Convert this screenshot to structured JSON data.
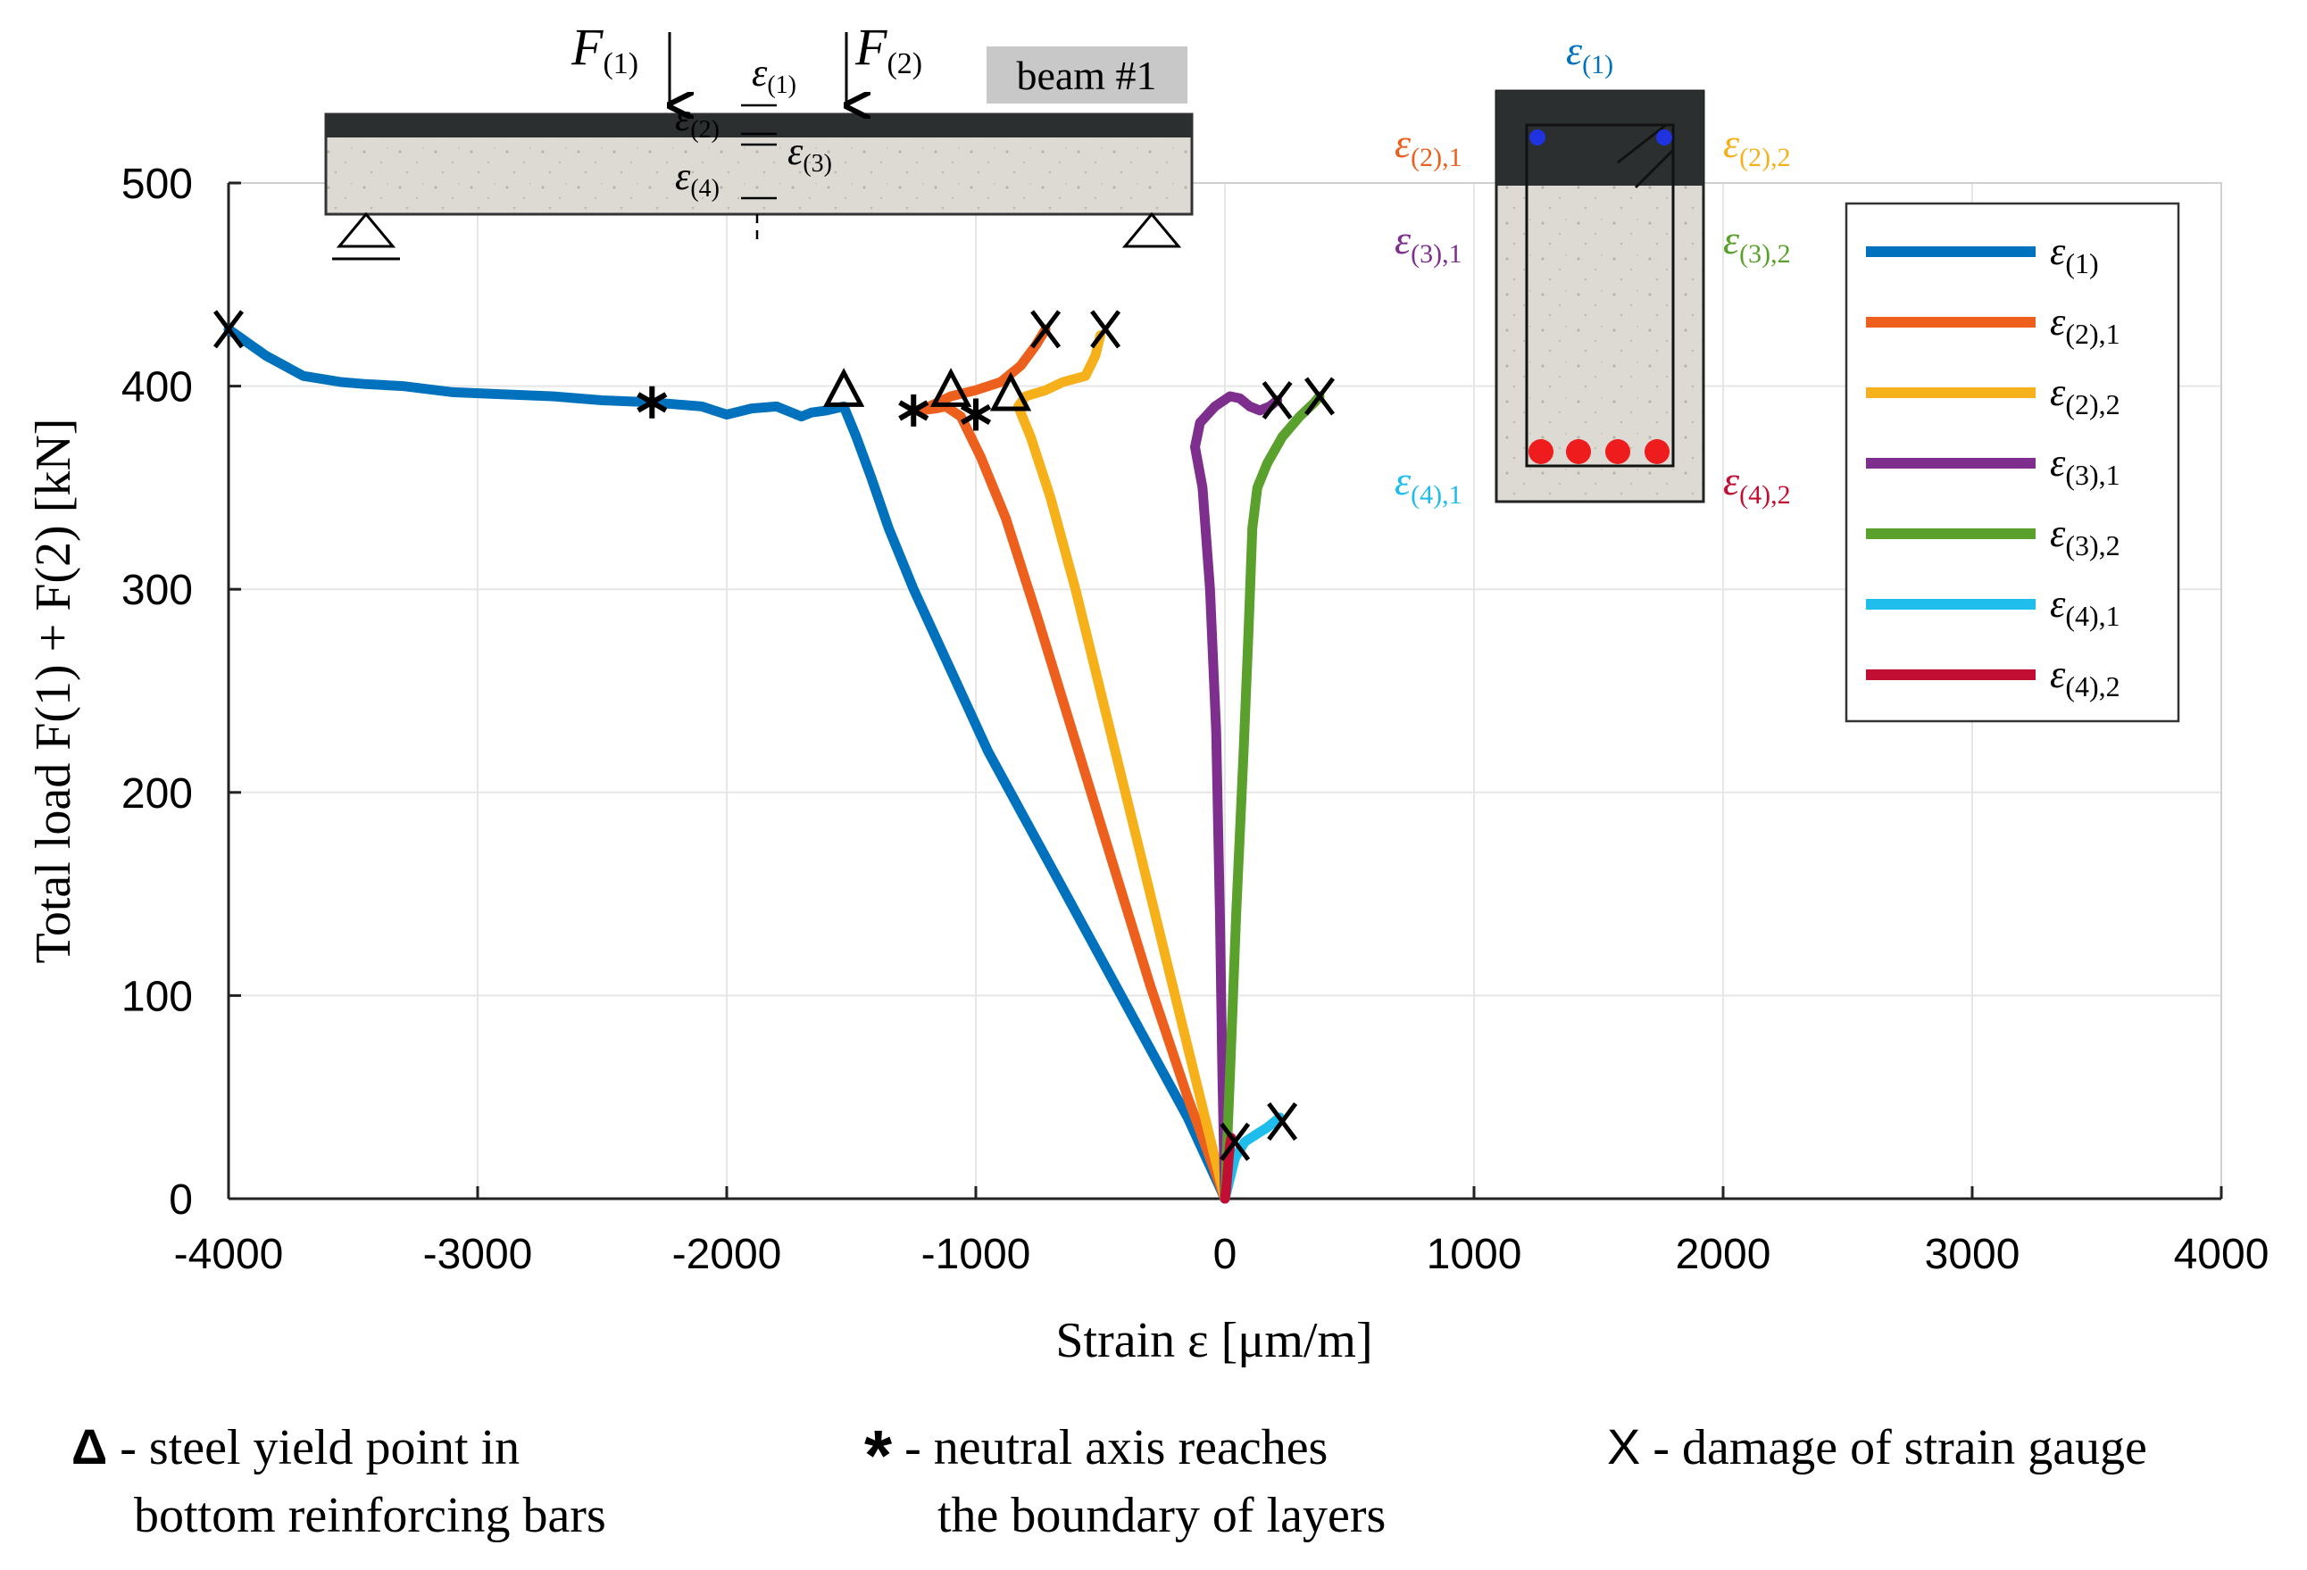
{
  "chart_data": {
    "type": "line",
    "title": "",
    "xlabel": "Strain ε [μm/m]",
    "ylabel": "Total load F(1) + F(2) [kN]",
    "xlim": [
      -4000,
      4000
    ],
    "ylim": [
      0,
      500
    ],
    "xticks": [
      -4000,
      -3000,
      -2000,
      -1000,
      0,
      1000,
      2000,
      3000,
      4000
    ],
    "yticks": [
      0,
      100,
      200,
      300,
      400,
      500
    ],
    "grid": true,
    "legend_position": "right",
    "series": [
      {
        "name": "ε(1)",
        "color": "#0072bd",
        "points": [
          [
            0,
            0
          ],
          [
            -150,
            40
          ],
          [
            -350,
            85
          ],
          [
            -550,
            130
          ],
          [
            -750,
            175
          ],
          [
            -950,
            220
          ],
          [
            -1100,
            260
          ],
          [
            -1250,
            300
          ],
          [
            -1350,
            330
          ],
          [
            -1420,
            355
          ],
          [
            -1480,
            375
          ],
          [
            -1530,
            390
          ],
          [
            -1600,
            388
          ],
          [
            -1660,
            387
          ],
          [
            -1700,
            385
          ],
          [
            -1800,
            390
          ],
          [
            -1900,
            389
          ],
          [
            -2000,
            386
          ],
          [
            -2100,
            390
          ],
          [
            -2300,
            392
          ],
          [
            -2500,
            393
          ],
          [
            -2700,
            395
          ],
          [
            -2900,
            396
          ],
          [
            -3100,
            397
          ],
          [
            -3300,
            400
          ],
          [
            -3450,
            401
          ],
          [
            -3550,
            402
          ],
          [
            -3700,
            405
          ],
          [
            -3850,
            415
          ],
          [
            -4000,
            428
          ]
        ]
      },
      {
        "name": "ε(2),1",
        "color": "#ec5f1c",
        "points": [
          [
            0,
            0
          ],
          [
            -150,
            50
          ],
          [
            -300,
            105
          ],
          [
            -450,
            165
          ],
          [
            -600,
            225
          ],
          [
            -750,
            285
          ],
          [
            -880,
            335
          ],
          [
            -980,
            365
          ],
          [
            -1060,
            385
          ],
          [
            -1120,
            390
          ],
          [
            -1160,
            389
          ],
          [
            -1220,
            388
          ],
          [
            -1100,
            395
          ],
          [
            -1000,
            398
          ],
          [
            -900,
            402
          ],
          [
            -820,
            410
          ],
          [
            -760,
            420
          ],
          [
            -720,
            428
          ]
        ]
      },
      {
        "name": "ε(2),2",
        "color": "#f6b11a",
        "points": [
          [
            0,
            0
          ],
          [
            -120,
            60
          ],
          [
            -240,
            120
          ],
          [
            -360,
            180
          ],
          [
            -480,
            240
          ],
          [
            -600,
            300
          ],
          [
            -700,
            345
          ],
          [
            -780,
            375
          ],
          [
            -830,
            390
          ],
          [
            -800,
            395
          ],
          [
            -720,
            398
          ],
          [
            -650,
            402
          ],
          [
            -560,
            405
          ],
          [
            -520,
            415
          ],
          [
            -500,
            425
          ]
        ]
      },
      {
        "name": "ε(3),1",
        "color": "#7e2f8e",
        "points": [
          [
            0,
            0
          ],
          [
            -10,
            60
          ],
          [
            -20,
            140
          ],
          [
            -35,
            230
          ],
          [
            -60,
            300
          ],
          [
            -90,
            350
          ],
          [
            -120,
            370
          ],
          [
            -100,
            382
          ],
          [
            -40,
            390
          ],
          [
            20,
            395
          ],
          [
            60,
            394
          ],
          [
            100,
            390
          ],
          [
            140,
            388
          ],
          [
            180,
            390
          ],
          [
            210,
            393
          ]
        ]
      },
      {
        "name": "ε(3),2",
        "color": "#5aa02c",
        "points": [
          [
            0,
            0
          ],
          [
            20,
            60
          ],
          [
            45,
            140
          ],
          [
            75,
            220
          ],
          [
            95,
            280
          ],
          [
            110,
            330
          ],
          [
            130,
            350
          ],
          [
            170,
            362
          ],
          [
            230,
            375
          ],
          [
            300,
            385
          ],
          [
            360,
            392
          ],
          [
            380,
            395
          ]
        ]
      },
      {
        "name": "ε(4),1",
        "color": "#1ebdec",
        "points": [
          [
            0,
            0
          ],
          [
            20,
            10
          ],
          [
            40,
            20
          ],
          [
            80,
            28
          ],
          [
            130,
            32
          ],
          [
            170,
            35
          ],
          [
            200,
            38
          ],
          [
            220,
            40
          ]
        ]
      },
      {
        "name": "ε(4),2",
        "color": "#c20e32",
        "points": [
          [
            0,
            0
          ],
          [
            5,
            5
          ],
          [
            10,
            12
          ],
          [
            15,
            20
          ],
          [
            20,
            26
          ],
          [
            25,
            30
          ]
        ]
      }
    ],
    "markers": {
      "yield": [
        [
          -1530,
          397
        ],
        [
          -1100,
          397
        ],
        [
          -860,
          395
        ]
      ],
      "neutral_axis": [
        [
          -2300,
          392
        ],
        [
          -1250,
          388
        ],
        [
          -1000,
          386
        ]
      ],
      "damage": [
        [
          -4000,
          428
        ],
        [
          -720,
          428
        ],
        [
          -480,
          428
        ],
        [
          210,
          393
        ],
        [
          380,
          395
        ],
        [
          40,
          28
        ],
        [
          230,
          38
        ]
      ]
    }
  },
  "legend": {
    "entries": [
      {
        "base": "ε",
        "sub": "(1)",
        "color": "#0072bd"
      },
      {
        "base": "ε",
        "sub": "(2),1",
        "color": "#ec5f1c"
      },
      {
        "base": "ε",
        "sub": "(2),2",
        "color": "#f6b11a"
      },
      {
        "base": "ε",
        "sub": "(3),1",
        "color": "#7e2f8e"
      },
      {
        "base": "ε",
        "sub": "(3),2",
        "color": "#5aa02c"
      },
      {
        "base": "ε",
        "sub": "(4),1",
        "color": "#1ebdec"
      },
      {
        "base": "ε",
        "sub": "(4),2",
        "color": "#c20e32"
      }
    ]
  },
  "beam_schematic": {
    "label": "beam #1",
    "forces": [
      {
        "base": "F",
        "sub": "(1)"
      },
      {
        "base": "F",
        "sub": "(2)"
      }
    ],
    "gauges": [
      {
        "base": "ε",
        "sub": "(1)"
      },
      {
        "base": "ε",
        "sub": "(2)"
      },
      {
        "base": "ε",
        "sub": "(3)"
      },
      {
        "base": "ε",
        "sub": "(4)"
      }
    ]
  },
  "cross_section": {
    "labels": [
      {
        "base": "ε",
        "sub": "(1)",
        "color": "#0072bd"
      },
      {
        "base": "ε",
        "sub": "(2),1",
        "color": "#ec5f1c"
      },
      {
        "base": "ε",
        "sub": "(2),2",
        "color": "#f6b11a"
      },
      {
        "base": "ε",
        "sub": "(3),1",
        "color": "#7e2f8e"
      },
      {
        "base": "ε",
        "sub": "(3),2",
        "color": "#5aa02c"
      },
      {
        "base": "ε",
        "sub": "(4),1",
        "color": "#1ebdec"
      },
      {
        "base": "ε",
        "sub": "(4),2",
        "color": "#c20e32"
      }
    ]
  },
  "notes": {
    "yield_symbol": "Δ",
    "yield_line1": " - steel yield point in",
    "yield_line2": "bottom reinforcing bars",
    "neutral_symbol": "*",
    "neutral_line1": " - neutral axis reaches",
    "neutral_line2": "the boundary of layers",
    "damage_symbol": "X",
    "damage_line1": " - damage of strain gauge"
  }
}
